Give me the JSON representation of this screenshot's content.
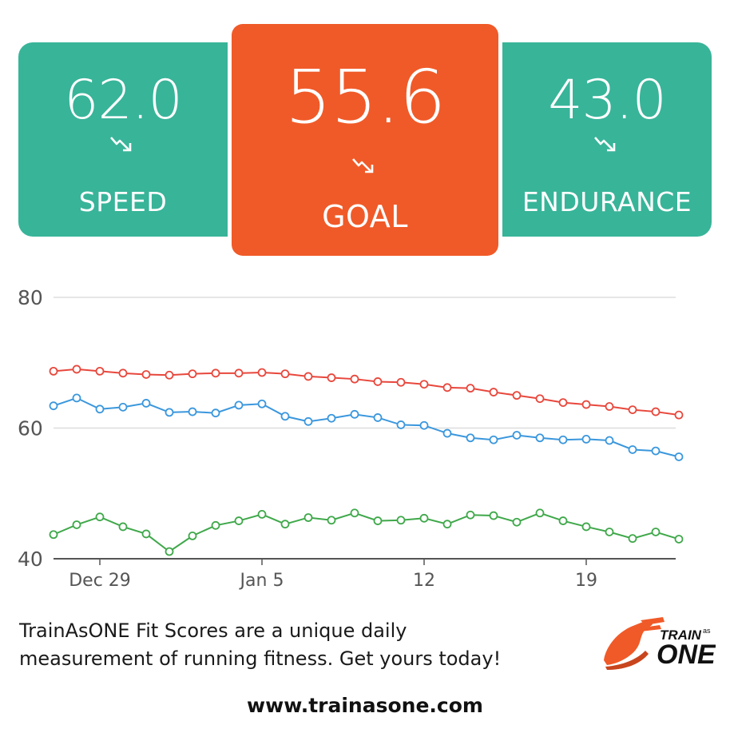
{
  "cards": {
    "speed": {
      "value": "62.0",
      "label": "SPEED",
      "trend_icon": "trending-down-icon"
    },
    "goal": {
      "value": "55.6",
      "label": "GOAL",
      "trend_icon": "trending-down-icon"
    },
    "endurance": {
      "value": "43.0",
      "label": "ENDURANCE",
      "trend_icon": "trending-down-icon"
    }
  },
  "colors": {
    "teal": "#38b499",
    "orange": "#f05a28",
    "speed_line": "#e8473c",
    "goal_line": "#3a97dd",
    "endurance_line": "#3fa84a"
  },
  "chart_data": {
    "type": "line",
    "x": [
      "Dec 27",
      "Dec 28",
      "Dec 29",
      "Dec 30",
      "Dec 31",
      "Jan 1",
      "Jan 2",
      "Jan 3",
      "Jan 4",
      "Jan 5",
      "Jan 6",
      "Jan 7",
      "Jan 8",
      "Jan 9",
      "Jan 10",
      "Jan 11",
      "Jan 12",
      "Jan 13",
      "Jan 14",
      "Jan 15",
      "Jan 16",
      "Jan 17",
      "Jan 18",
      "Jan 19",
      "Jan 20",
      "Jan 21",
      "Jan 22",
      "Jan 23"
    ],
    "xticks": [
      {
        "x": "Dec 29",
        "label": "Dec 29"
      },
      {
        "x": "Jan 5",
        "label": "Jan 5"
      },
      {
        "x": "Jan 12",
        "label": "12"
      },
      {
        "x": "Jan 19",
        "label": "19"
      }
    ],
    "ylim": [
      40,
      80
    ],
    "yticks": [
      40,
      60,
      80
    ],
    "grid": true,
    "series": [
      {
        "color": "#e8473c",
        "values": [
          68.7,
          69.0,
          68.7,
          68.4,
          68.2,
          68.1,
          68.3,
          68.4,
          68.4,
          68.5,
          68.3,
          67.9,
          67.7,
          67.5,
          67.1,
          67.0,
          66.7,
          66.2,
          66.1,
          65.5,
          65.0,
          64.5,
          63.9,
          63.6,
          63.3,
          62.8,
          62.5,
          62.0
        ]
      },
      {
        "color": "#3a97dd",
        "values": [
          63.4,
          64.6,
          62.9,
          63.2,
          63.8,
          62.4,
          62.5,
          62.3,
          63.5,
          63.7,
          61.8,
          61.0,
          61.5,
          62.1,
          61.6,
          60.5,
          60.4,
          59.2,
          58.5,
          58.2,
          58.9,
          58.5,
          58.2,
          58.3,
          58.1,
          56.7,
          56.5,
          55.6
        ]
      },
      {
        "color": "#3fa84a",
        "values": [
          43.7,
          45.2,
          46.4,
          44.9,
          43.8,
          41.1,
          43.5,
          45.1,
          45.8,
          46.8,
          45.3,
          46.3,
          45.9,
          47.0,
          45.8,
          45.9,
          46.2,
          45.3,
          46.7,
          46.6,
          45.6,
          47.0,
          45.8,
          44.9,
          44.1,
          43.1,
          44.1,
          43.0
        ]
      }
    ]
  },
  "footer": {
    "tagline_line1": "TrainAsONE Fit Scores are a unique daily",
    "tagline_line2": "measurement of running fitness. Get yours today!",
    "url": "www.trainasone.com",
    "logo_text": "TRAIN as ONE"
  }
}
